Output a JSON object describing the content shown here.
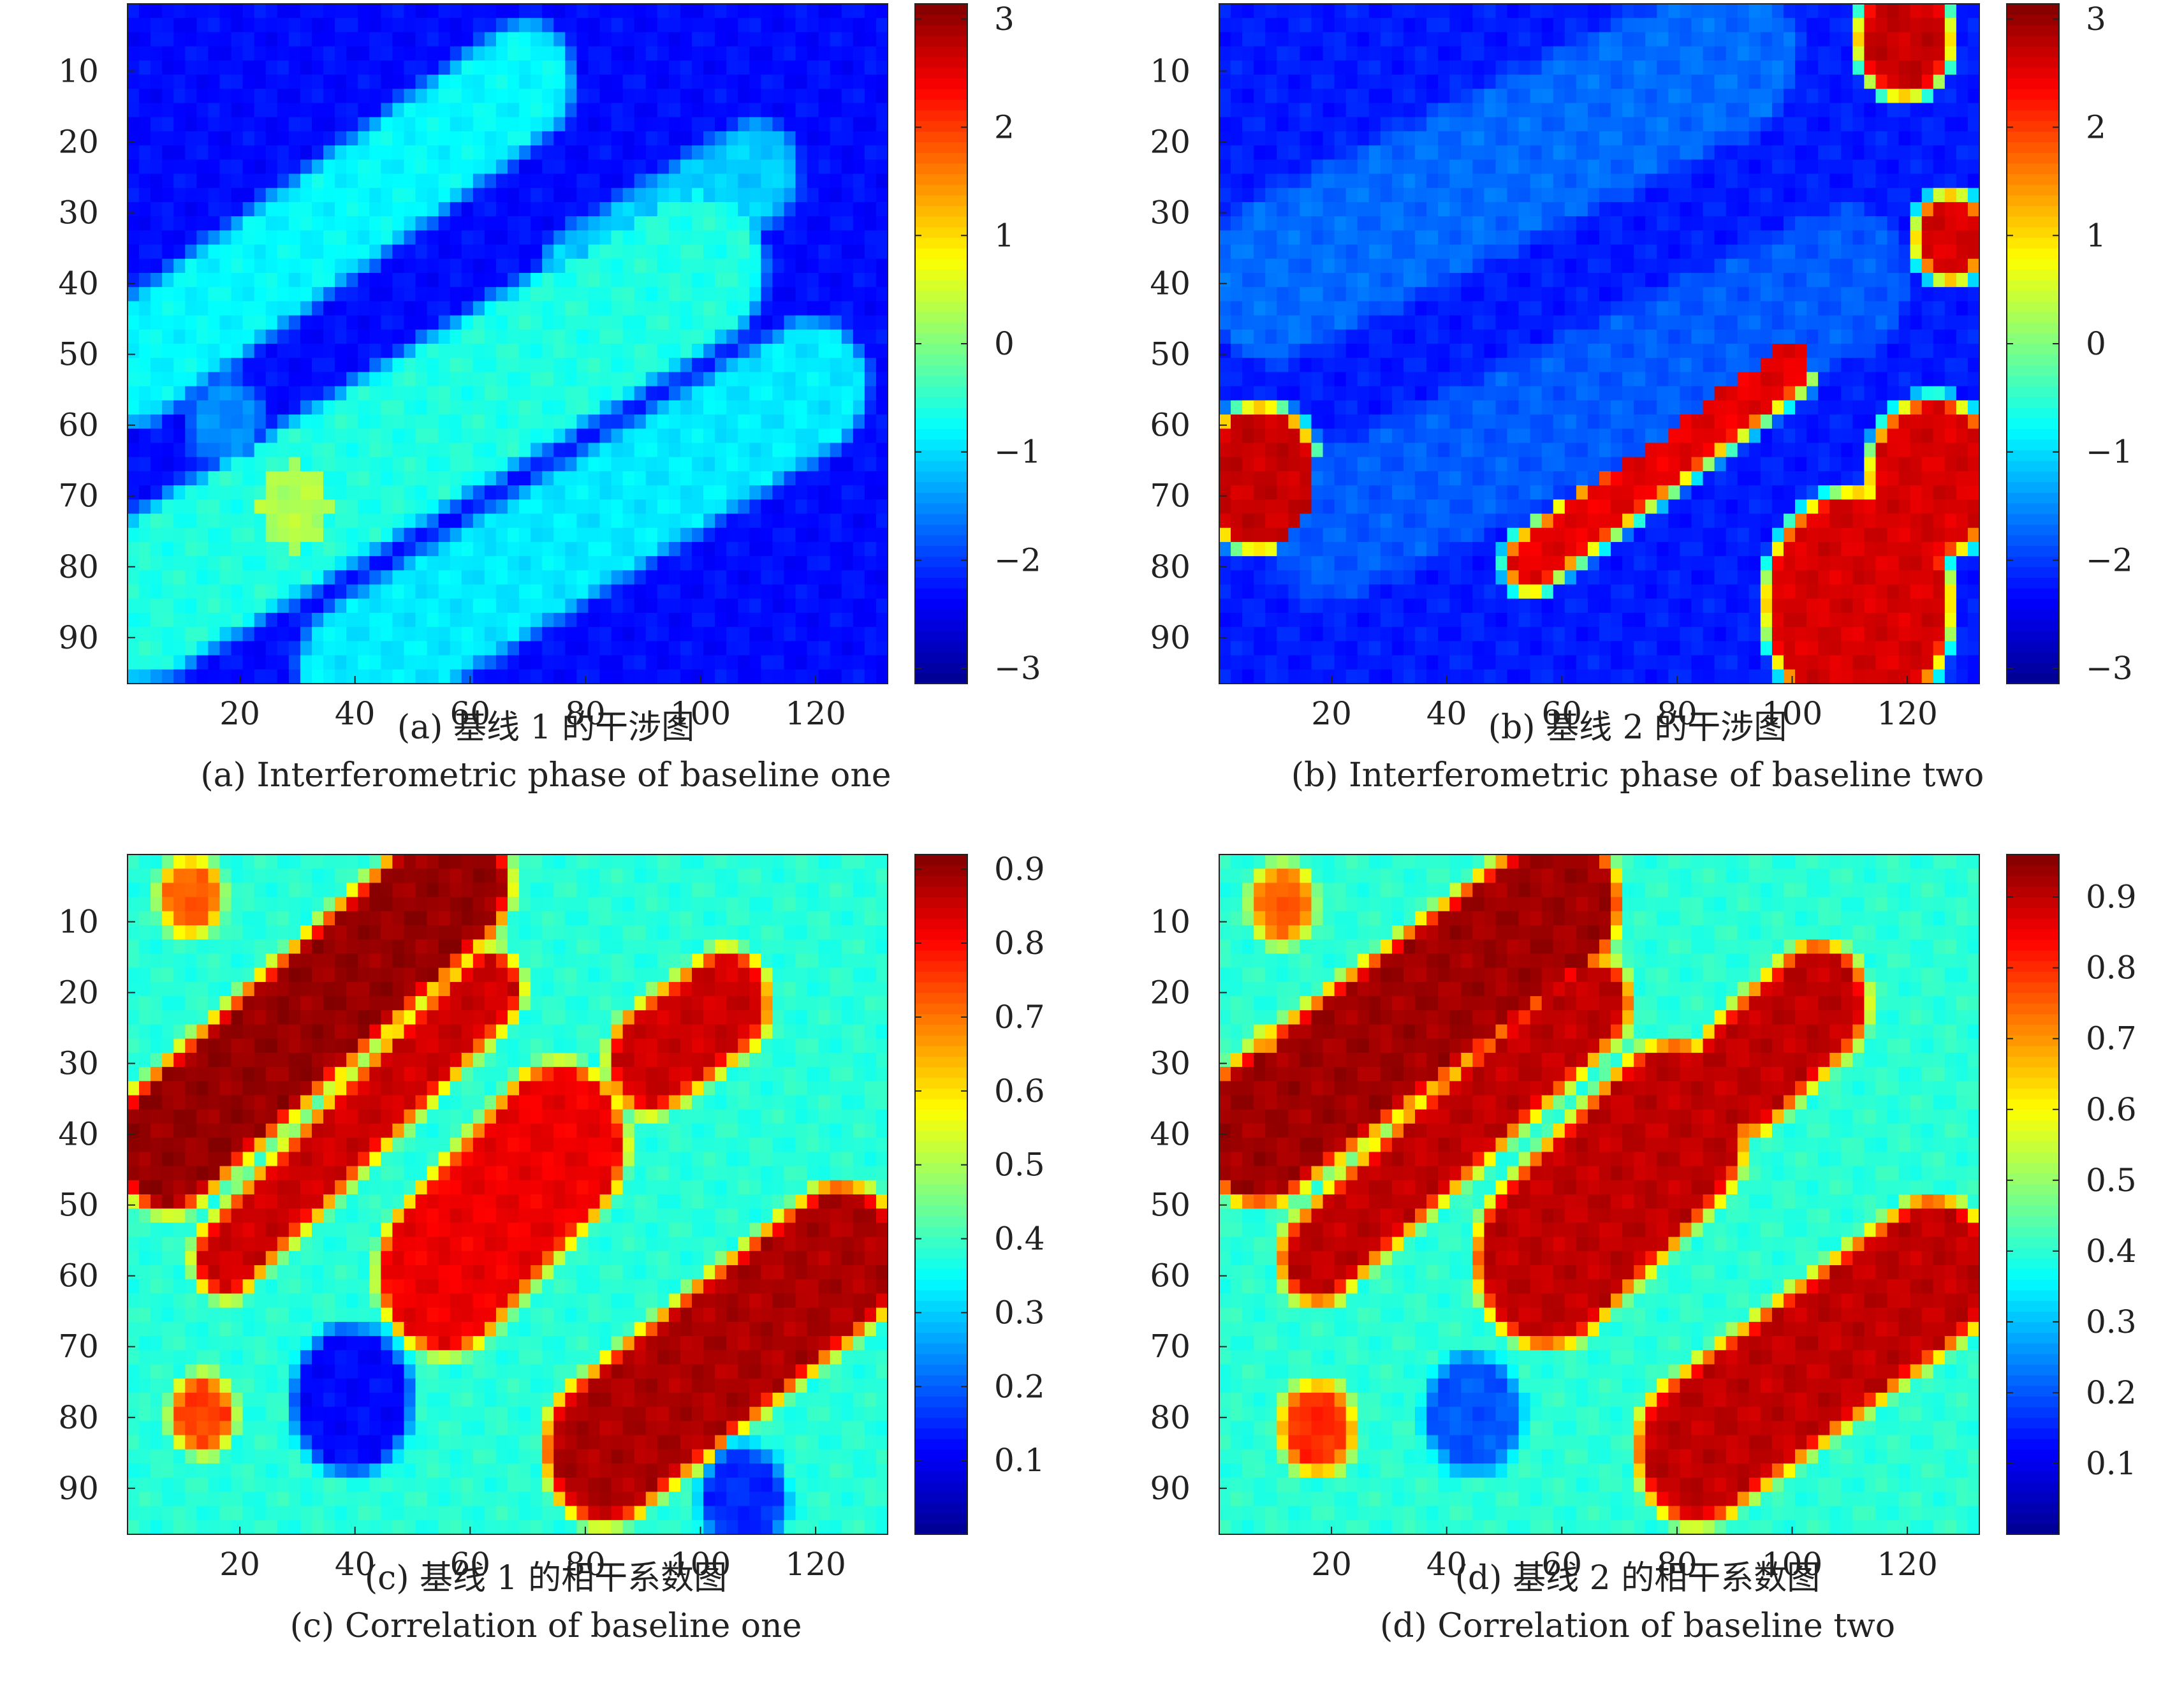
{
  "colormap": [
    "#00008f",
    "#0000ff",
    "#0080ff",
    "#00ffff",
    "#80ff80",
    "#ffff00",
    "#ff8000",
    "#ff0000",
    "#800000"
  ],
  "chart_data": [
    {
      "type": "heatmap",
      "panel_id": "a",
      "caption_cn": "(a) 基线 1 的干涉图",
      "caption_en": "(a) Interferometric phase of baseline one",
      "x_ticks": [
        20,
        40,
        60,
        80,
        100,
        120
      ],
      "y_ticks": [
        10,
        20,
        30,
        40,
        50,
        60,
        70,
        80,
        90
      ],
      "x_range": [
        1,
        132
      ],
      "y_range": [
        1,
        96
      ],
      "colorbar_ticks": [
        -3,
        -2,
        -1,
        0,
        1,
        2,
        3
      ],
      "colorbar_tick_labels": [
        "−3",
        "−2",
        "−1",
        "0",
        "1",
        "2",
        "3"
      ],
      "colorbar_range": [
        -3.14,
        3.14
      ],
      "background_level": -2.3,
      "features": [
        {
          "shape": "band",
          "x0": 2,
          "y0": 52,
          "x1": 70,
          "y1": 12,
          "halfwidth": 7,
          "value": -0.8
        },
        {
          "shape": "band",
          "x0": 4,
          "y0": 85,
          "x1": 100,
          "y1": 38,
          "halfwidth": 10,
          "value": -0.6
        },
        {
          "shape": "band",
          "x0": 40,
          "y0": 95,
          "x1": 120,
          "y1": 55,
          "halfwidth": 8,
          "value": -0.9
        },
        {
          "shape": "band",
          "x0": 80,
          "y0": 40,
          "x1": 110,
          "y1": 25,
          "halfwidth": 6,
          "value": -1.1
        },
        {
          "shape": "blob",
          "cx": 30,
          "cy": 72,
          "r": 6,
          "value": 0.3
        },
        {
          "shape": "blob",
          "cx": 18,
          "cy": 60,
          "r": 5,
          "value": -1.5
        }
      ]
    },
    {
      "type": "heatmap",
      "panel_id": "b",
      "caption_cn": "(b) 基线 2 的干涉图",
      "caption_en": "(b) Interferometric phase of baseline two",
      "x_ticks": [
        20,
        40,
        60,
        80,
        100,
        120
      ],
      "y_ticks": [
        10,
        20,
        30,
        40,
        50,
        60,
        70,
        80,
        90
      ],
      "x_range": [
        1,
        132
      ],
      "y_range": [
        1,
        96
      ],
      "colorbar_ticks": [
        -3,
        -2,
        -1,
        0,
        1,
        2,
        3
      ],
      "colorbar_tick_labels": [
        "−3",
        "−2",
        "−1",
        "0",
        "1",
        "2",
        "3"
      ],
      "colorbar_range": [
        -3.14,
        3.14
      ],
      "background_level": -2.2,
      "features": [
        {
          "shape": "band",
          "x0": 10,
          "y0": 40,
          "x1": 90,
          "y1": 8,
          "halfwidth": 10,
          "value": -1.7
        },
        {
          "shape": "band",
          "x0": 20,
          "y0": 75,
          "x1": 110,
          "y1": 40,
          "halfwidth": 9,
          "value": -1.8
        },
        {
          "shape": "blob",
          "cx": 112,
          "cy": 86,
          "r": 15,
          "value": 2.6
        },
        {
          "shape": "blob",
          "cx": 125,
          "cy": 68,
          "r": 10,
          "value": 2.6
        },
        {
          "shape": "blob",
          "cx": 8,
          "cy": 68,
          "r": 9,
          "value": 2.7
        },
        {
          "shape": "blob",
          "cx": 120,
          "cy": 6,
          "r": 7,
          "value": 2.7
        },
        {
          "shape": "blob",
          "cx": 128,
          "cy": 34,
          "r": 5,
          "value": 2.6
        },
        {
          "shape": "band",
          "x0": 55,
          "y0": 80,
          "x1": 100,
          "y1": 52,
          "halfwidth": 3,
          "value": 2.5
        }
      ]
    },
    {
      "type": "heatmap",
      "panel_id": "c",
      "caption_cn": "(c) 基线 1 的相干系数图",
      "caption_en": "(c) Correlation of baseline one",
      "x_ticks": [
        20,
        40,
        60,
        80,
        100,
        120
      ],
      "y_ticks": [
        10,
        20,
        30,
        40,
        50,
        60,
        70,
        80,
        90
      ],
      "x_range": [
        1,
        132
      ],
      "y_range": [
        1,
        96
      ],
      "colorbar_ticks": [
        0.1,
        0.2,
        0.3,
        0.4,
        0.5,
        0.6,
        0.7,
        0.8,
        0.9
      ],
      "colorbar_tick_labels": [
        "0.1",
        "0.2",
        "0.3",
        "0.4",
        "0.5",
        "0.6",
        "0.7",
        "0.8",
        "0.9"
      ],
      "colorbar_range": [
        0.0,
        0.92
      ],
      "background_level": 0.38,
      "features": [
        {
          "shape": "band",
          "x0": 8,
          "y0": 42,
          "x1": 58,
          "y1": 5,
          "halfwidth": 8,
          "value": 0.9
        },
        {
          "shape": "band",
          "x0": 18,
          "y0": 58,
          "x1": 64,
          "y1": 20,
          "halfwidth": 4,
          "value": 0.85
        },
        {
          "shape": "band",
          "x0": 56,
          "y0": 60,
          "x1": 76,
          "y1": 42,
          "halfwidth": 10,
          "value": 0.82
        },
        {
          "shape": "band",
          "x0": 92,
          "y0": 30,
          "x1": 105,
          "y1": 22,
          "halfwidth": 6,
          "value": 0.85
        },
        {
          "shape": "band",
          "x0": 84,
          "y0": 85,
          "x1": 125,
          "y1": 58,
          "halfwidth": 9,
          "value": 0.88
        },
        {
          "shape": "blob",
          "cx": 12,
          "cy": 7,
          "r": 4,
          "value": 0.72
        },
        {
          "shape": "blob",
          "cx": 14,
          "cy": 80,
          "r": 4,
          "value": 0.75
        },
        {
          "shape": "blob",
          "cx": 40,
          "cy": 78,
          "r": 9,
          "value": 0.12
        },
        {
          "shape": "blob",
          "cx": 108,
          "cy": 92,
          "r": 6,
          "value": 0.15
        }
      ]
    },
    {
      "type": "heatmap",
      "panel_id": "d",
      "caption_cn": "(d) 基线 2 的相干系数图",
      "caption_en": "(d) Correlation of baseline two",
      "x_ticks": [
        20,
        40,
        60,
        80,
        100,
        120
      ],
      "y_ticks": [
        10,
        20,
        30,
        40,
        50,
        60,
        70,
        80,
        90
      ],
      "x_range": [
        1,
        132
      ],
      "y_range": [
        1,
        96
      ],
      "colorbar_ticks": [
        0.1,
        0.2,
        0.3,
        0.4,
        0.5,
        0.6,
        0.7,
        0.8,
        0.9
      ],
      "colorbar_tick_labels": [
        "0.1",
        "0.2",
        "0.3",
        "0.4",
        "0.5",
        "0.6",
        "0.7",
        "0.8",
        "0.9"
      ],
      "colorbar_range": [
        0.0,
        0.96
      ],
      "background_level": 0.4,
      "features": [
        {
          "shape": "band",
          "x0": 8,
          "y0": 40,
          "x1": 60,
          "y1": 8,
          "halfwidth": 9,
          "value": 0.93
        },
        {
          "shape": "band",
          "x0": 18,
          "y0": 58,
          "x1": 66,
          "y1": 22,
          "halfwidth": 5,
          "value": 0.9
        },
        {
          "shape": "band",
          "x0": 58,
          "y0": 58,
          "x1": 80,
          "y1": 40,
          "halfwidth": 11,
          "value": 0.9
        },
        {
          "shape": "band",
          "x0": 92,
          "y0": 32,
          "x1": 105,
          "y1": 22,
          "halfwidth": 7,
          "value": 0.9
        },
        {
          "shape": "band",
          "x0": 84,
          "y0": 85,
          "x1": 125,
          "y1": 60,
          "halfwidth": 9,
          "value": 0.9
        },
        {
          "shape": "blob",
          "cx": 12,
          "cy": 8,
          "r": 4,
          "value": 0.75
        },
        {
          "shape": "blob",
          "cx": 18,
          "cy": 82,
          "r": 5,
          "value": 0.8
        },
        {
          "shape": "blob",
          "cx": 10,
          "cy": 30,
          "r": 3,
          "value": 0.7
        },
        {
          "shape": "blob",
          "cx": 45,
          "cy": 80,
          "r": 7,
          "value": 0.2
        }
      ]
    }
  ]
}
